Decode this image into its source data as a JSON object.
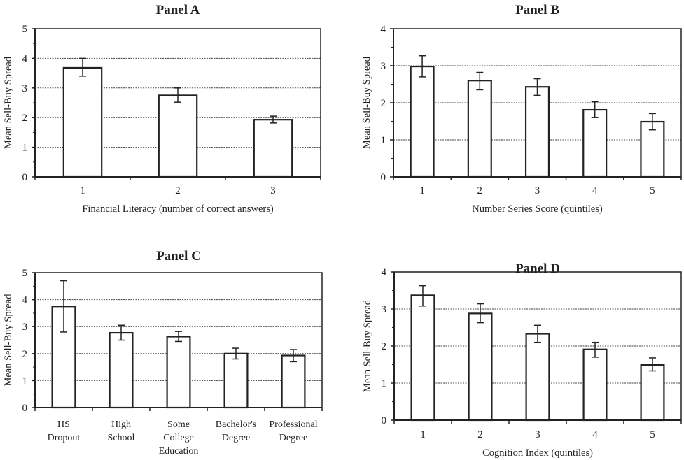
{
  "chart_data": [
    {
      "type": "bar",
      "title": "Panel A",
      "xlabel": "Financial Literacy (number of correct answers)",
      "ylabel": "Mean Sell-Buy Spread",
      "ylim": [
        0,
        5
      ],
      "yticks": [
        0,
        1,
        2,
        3,
        4,
        5
      ],
      "grid": true,
      "categories": [
        [
          "1"
        ],
        [
          "2"
        ],
        [
          "3"
        ]
      ],
      "values": [
        3.68,
        2.75,
        1.93
      ],
      "error_low": [
        3.4,
        2.52,
        1.82
      ],
      "error_high": [
        4.0,
        3.0,
        2.05
      ]
    },
    {
      "type": "bar",
      "title": "Panel B",
      "xlabel": "Number Series Score (quintiles)",
      "ylabel": "Mean Sell-Buy Spread",
      "ylim": [
        0,
        4
      ],
      "yticks": [
        0,
        1,
        2,
        3,
        4
      ],
      "grid": true,
      "categories": [
        [
          "1"
        ],
        [
          "2"
        ],
        [
          "3"
        ],
        [
          "4"
        ],
        [
          "5"
        ]
      ],
      "values": [
        2.98,
        2.6,
        2.43,
        1.81,
        1.49
      ],
      "error_low": [
        2.7,
        2.35,
        2.2,
        1.6,
        1.27
      ],
      "error_high": [
        3.27,
        2.82,
        2.65,
        2.03,
        1.71
      ]
    },
    {
      "type": "bar",
      "title": "Panel C",
      "xlabel": "",
      "ylabel": "Mean Sell-Buy Spread",
      "ylim": [
        0,
        5
      ],
      "yticks": [
        0,
        1,
        2,
        3,
        4,
        5
      ],
      "grid": true,
      "categories": [
        [
          "HS",
          "Dropout"
        ],
        [
          "High",
          "School"
        ],
        [
          "Some",
          "College",
          "Education"
        ],
        [
          "Bachelor's",
          "Degree"
        ],
        [
          "Professional",
          "Degree"
        ]
      ],
      "values": [
        3.75,
        2.77,
        2.63,
        2.0,
        1.93
      ],
      "error_low": [
        2.8,
        2.5,
        2.45,
        1.8,
        1.7
      ],
      "error_high": [
        4.7,
        3.05,
        2.82,
        2.2,
        2.15
      ]
    },
    {
      "type": "bar",
      "title": "Panel D",
      "xlabel": "Cognition Index (quintiles)",
      "ylabel": "Mean Sell-Buy Spread",
      "ylim": [
        0,
        4
      ],
      "yticks": [
        0,
        1,
        2,
        3,
        4
      ],
      "grid": true,
      "categories": [
        [
          "1"
        ],
        [
          "2"
        ],
        [
          "3"
        ],
        [
          "4"
        ],
        [
          "5"
        ]
      ],
      "values": [
        3.37,
        2.88,
        2.33,
        1.91,
        1.49
      ],
      "error_low": [
        3.08,
        2.63,
        2.1,
        1.7,
        1.33
      ],
      "error_high": [
        3.63,
        3.14,
        2.56,
        2.1,
        1.68
      ]
    }
  ]
}
